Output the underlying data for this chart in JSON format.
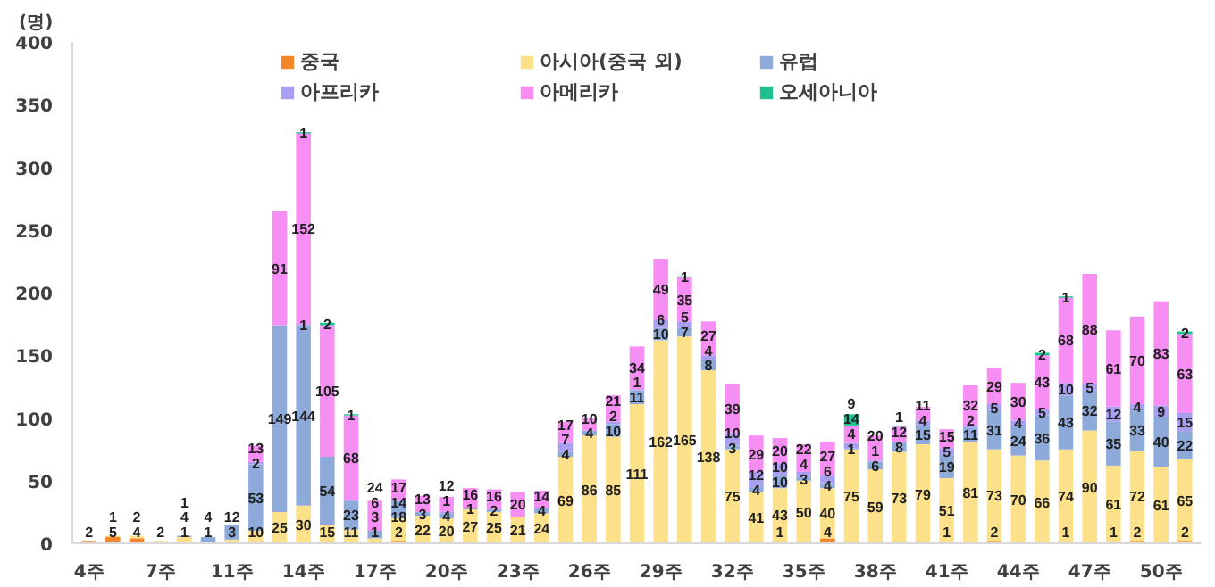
{
  "chart_data": {
    "type": "bar",
    "stacked": true,
    "ylabel": "(명)",
    "data_labels": true,
    "legend": "top",
    "grid": false,
    "categories": [
      "4주",
      null,
      null,
      "7주",
      null,
      null,
      "11주",
      null,
      null,
      "14주",
      null,
      null,
      "17주",
      null,
      null,
      "20주",
      null,
      null,
      "23주",
      null,
      null,
      "26주",
      null,
      null,
      "29주",
      null,
      null,
      "32주",
      null,
      null,
      "35주",
      null,
      null,
      "38주",
      null,
      null,
      "41주",
      null,
      null,
      "44주",
      null,
      null,
      "47주",
      null,
      null,
      "50주",
      null
    ],
    "ylim": [
      0,
      400
    ],
    "yticks": [
      0,
      50,
      100,
      150,
      200,
      250,
      300,
      350,
      400
    ],
    "series": [
      {
        "name": "중국",
        "color": "#f4862a",
        "values": [
          2,
          5,
          4,
          null,
          1,
          null,
          null,
          null,
          null,
          null,
          null,
          null,
          1,
          2,
          null,
          null,
          null,
          null,
          null,
          null,
          null,
          null,
          null,
          null,
          null,
          null,
          null,
          null,
          null,
          1,
          null,
          4,
          null,
          null,
          null,
          null,
          1,
          null,
          2,
          null,
          null,
          1,
          null,
          1,
          2,
          null,
          2
        ]
      },
      {
        "name": "아시아(중국 외)",
        "color": "#fde18a",
        "values": [
          null,
          1,
          2,
          2,
          4,
          1,
          3,
          10,
          25,
          30,
          15,
          11,
          3,
          18,
          22,
          20,
          27,
          25,
          21,
          24,
          69,
          86,
          85,
          111,
          162,
          165,
          138,
          75,
          41,
          43,
          50,
          40,
          75,
          59,
          73,
          79,
          51,
          81,
          73,
          70,
          66,
          74,
          90,
          61,
          72,
          61,
          65
        ]
      },
      {
        "name": "유럽",
        "color": "#8eaadb",
        "values": [
          null,
          null,
          null,
          null,
          1,
          4,
          12,
          53,
          149,
          144,
          54,
          23,
          6,
          14,
          3,
          4,
          1,
          2,
          null,
          4,
          4,
          4,
          10,
          11,
          10,
          7,
          8,
          3,
          4,
          10,
          3,
          4,
          1,
          6,
          8,
          15,
          19,
          11,
          31,
          24,
          36,
          43,
          32,
          35,
          33,
          40,
          22
        ]
      },
      {
        "name": "아프리카",
        "color": "#a99ff0",
        "values": [
          null,
          null,
          null,
          null,
          null,
          null,
          null,
          2,
          null,
          1,
          null,
          null,
          null,
          null,
          null,
          1,
          null,
          null,
          null,
          null,
          7,
          null,
          2,
          1,
          6,
          5,
          4,
          10,
          12,
          10,
          4,
          6,
          4,
          1,
          null,
          4,
          5,
          2,
          5,
          4,
          5,
          10,
          5,
          12,
          4,
          9,
          15
        ]
      },
      {
        "name": "아메리카",
        "color": "#f68ef3",
        "values": [
          null,
          null,
          null,
          null,
          null,
          null,
          null,
          13,
          91,
          152,
          105,
          68,
          24,
          17,
          13,
          12,
          16,
          16,
          20,
          14,
          17,
          10,
          21,
          34,
          49,
          35,
          27,
          39,
          29,
          20,
          22,
          27,
          14,
          20,
          12,
          11,
          15,
          32,
          29,
          30,
          43,
          68,
          88,
          61,
          70,
          83,
          63
        ]
      },
      {
        "name": "오세아니아",
        "color": "#1fc08f",
        "values": [
          null,
          null,
          null,
          null,
          null,
          null,
          null,
          null,
          null,
          1,
          2,
          1,
          null,
          null,
          null,
          null,
          null,
          null,
          null,
          null,
          null,
          null,
          null,
          null,
          null,
          1,
          null,
          null,
          null,
          null,
          null,
          null,
          9,
          null,
          1,
          null,
          null,
          null,
          null,
          null,
          2,
          1,
          null,
          null,
          null,
          null,
          2
        ]
      }
    ]
  }
}
